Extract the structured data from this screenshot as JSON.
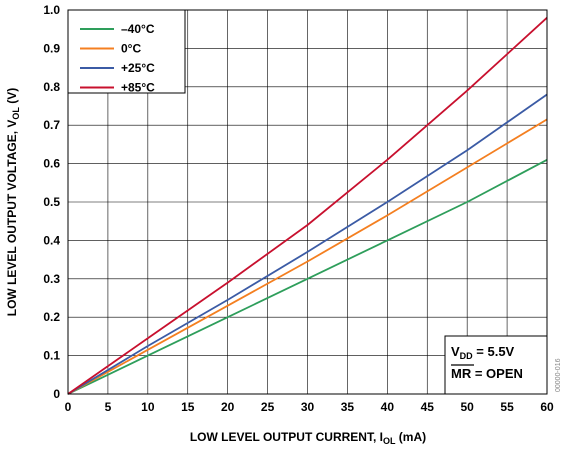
{
  "chart_data": {
    "type": "line",
    "xlabel": {
      "main": "LOW LEVEL OUTPUT CURRENT, I",
      "sub": "OL",
      "unit": " (mA)"
    },
    "ylabel": {
      "main": "LOW LEVEL OUTPUT VOLTAGE, V",
      "sub": "OL",
      "unit": " (V)"
    },
    "xlim": [
      0,
      60
    ],
    "ylim": [
      0,
      1.0
    ],
    "x_ticks": [
      "0",
      "5",
      "10",
      "15",
      "20",
      "25",
      "30",
      "35",
      "40",
      "45",
      "50",
      "55",
      "60"
    ],
    "y_ticks": [
      "0",
      "0.1",
      "0.2",
      "0.3",
      "0.4",
      "0.5",
      "0.6",
      "0.7",
      "0.8",
      "0.9",
      "1.0"
    ],
    "grid": true,
    "legend_position": "top-left",
    "series": [
      {
        "name": "–40°C",
        "color": "#2e9e5b",
        "x": [
          0,
          10,
          20,
          30,
          40,
          50,
          60
        ],
        "y": [
          0,
          0.1,
          0.2,
          0.3,
          0.4,
          0.5,
          0.61
        ]
      },
      {
        "name": "0°C",
        "color": "#f47f20",
        "x": [
          0,
          10,
          20,
          30,
          40,
          50,
          60
        ],
        "y": [
          0,
          0.115,
          0.23,
          0.345,
          0.465,
          0.59,
          0.715
        ]
      },
      {
        "name": "+25°C",
        "color": "#3b5ba5",
        "x": [
          0,
          10,
          20,
          30,
          40,
          50,
          60
        ],
        "y": [
          0,
          0.125,
          0.245,
          0.37,
          0.5,
          0.635,
          0.78
        ]
      },
      {
        "name": "+85°C",
        "color": "#c8102e",
        "x": [
          0,
          10,
          20,
          30,
          40,
          50,
          60
        ],
        "y": [
          0,
          0.145,
          0.29,
          0.44,
          0.61,
          0.79,
          0.98
        ]
      }
    ],
    "annotation": {
      "line1_main": "V",
      "line1_sub": "DD",
      "line1_rest": " = 5.5V",
      "line2_over": "MR",
      "line2_rest": " = OPEN"
    },
    "figure_id": "00000-016"
  }
}
